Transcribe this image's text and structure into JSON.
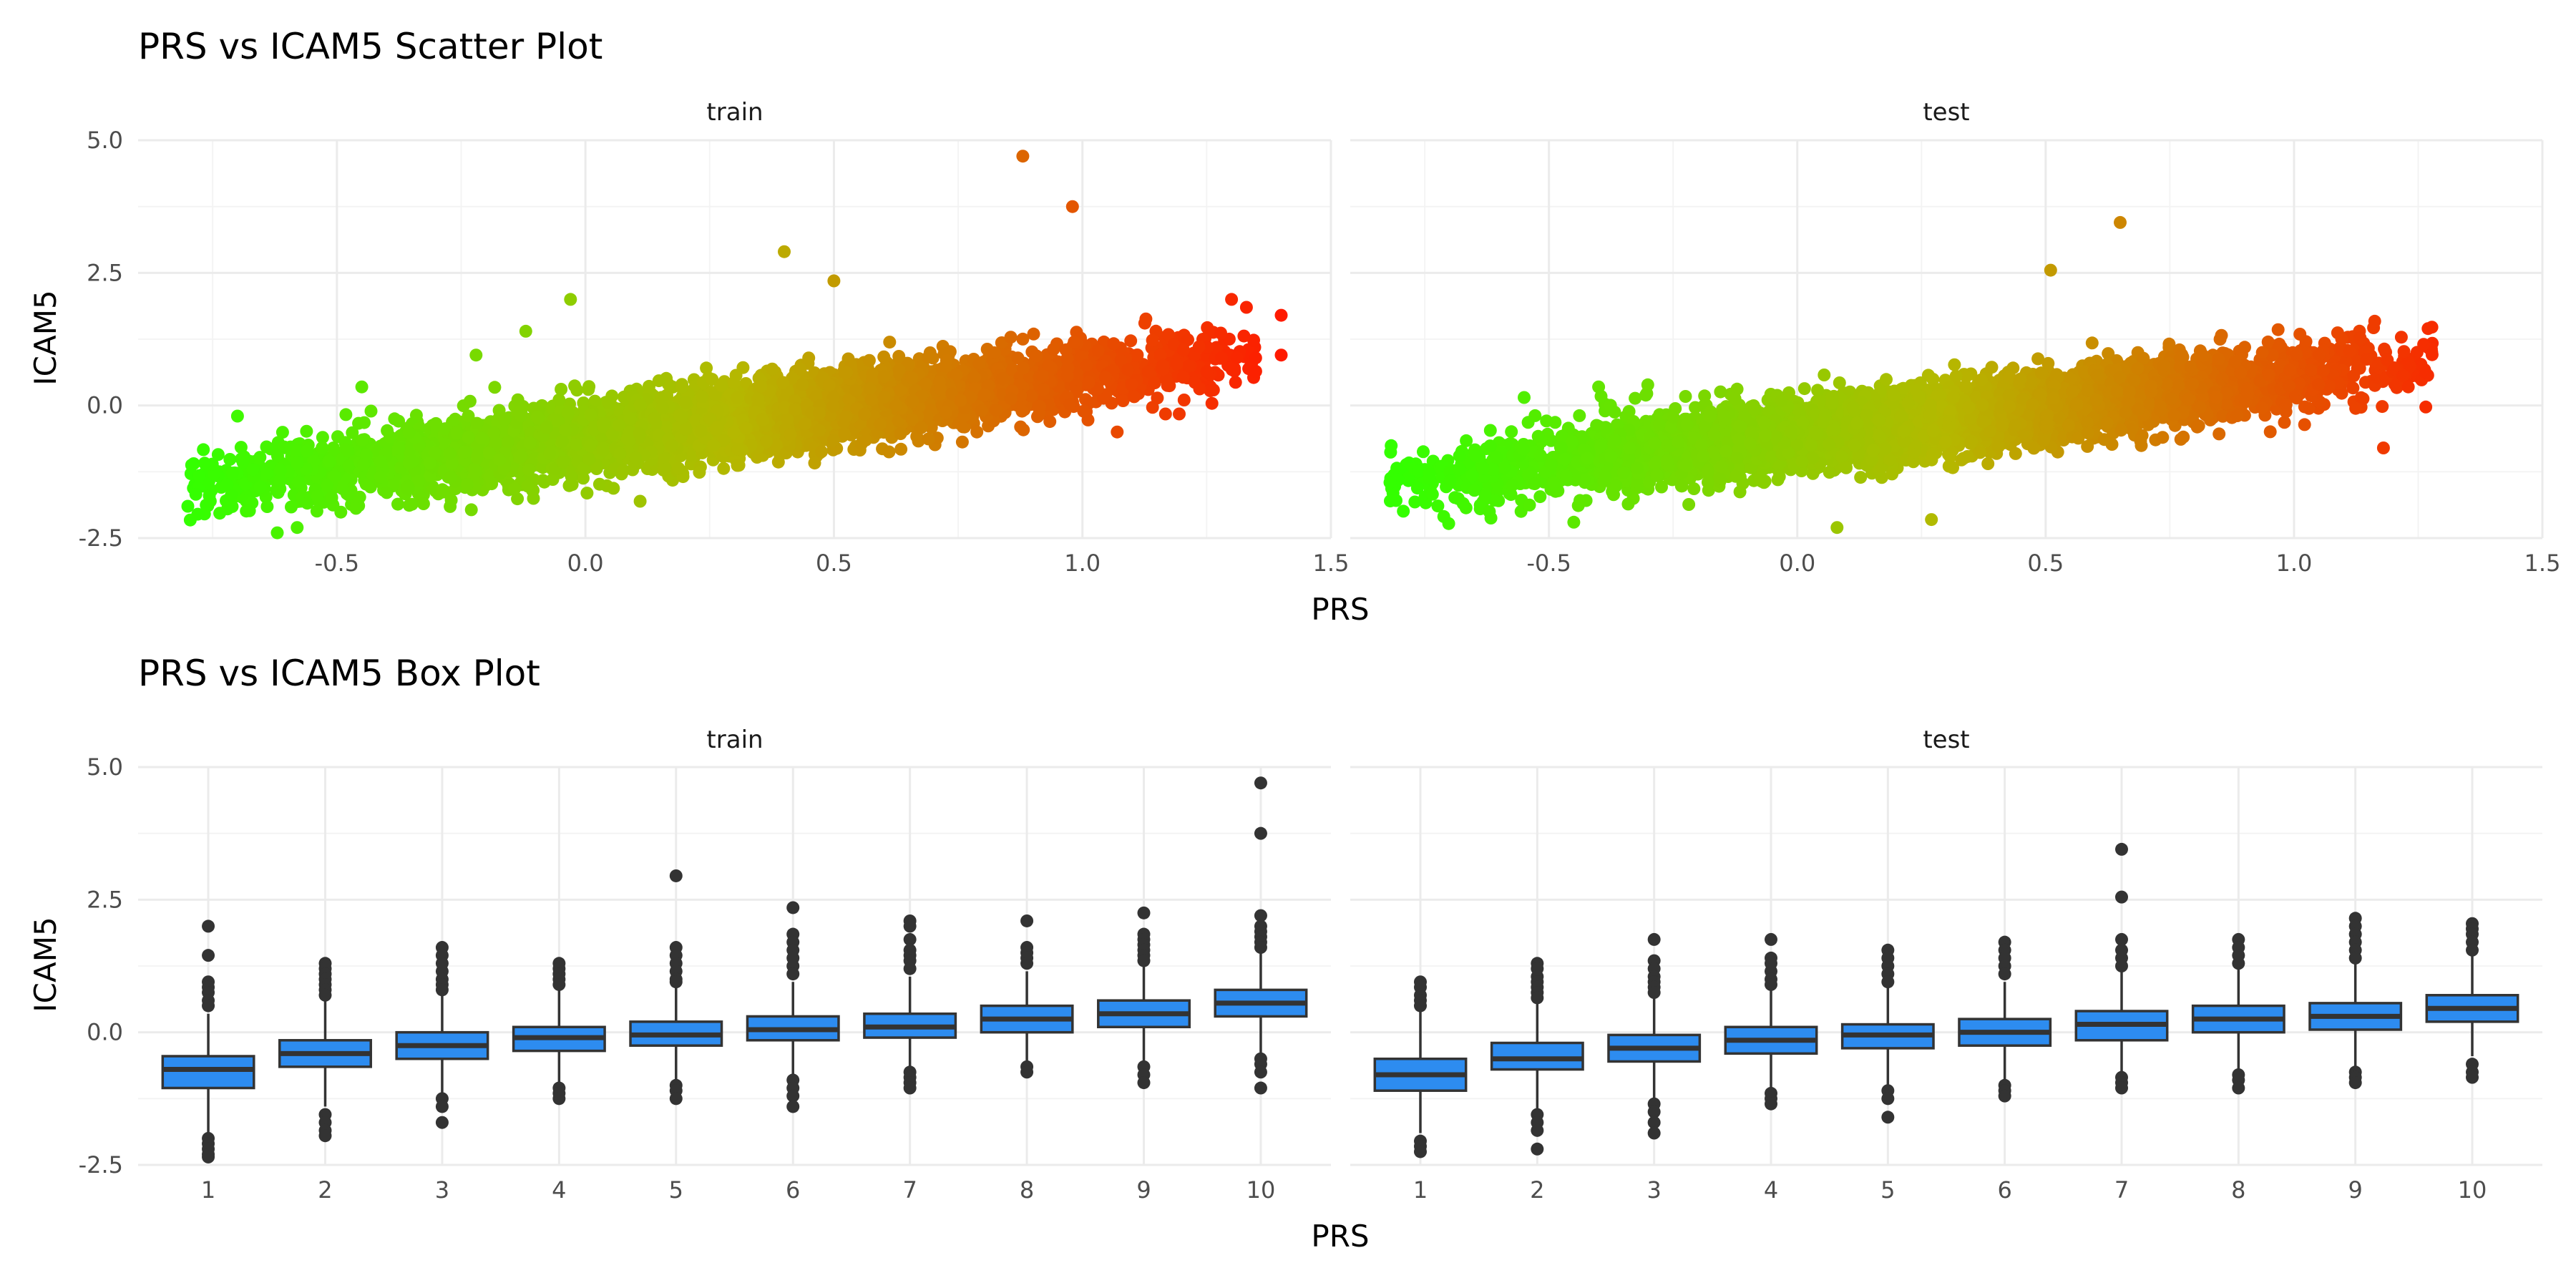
{
  "colors": {
    "low": "#33ff00",
    "mid": "#b5b800",
    "high": "#ff1a00",
    "box_fill": "#2d8cf0",
    "box_stroke": "#333333",
    "outlier": "#333333",
    "grid_major": "#ebebeb",
    "grid_minor": "#f3f3f3"
  },
  "chart_data": [
    {
      "type": "scatter",
      "title": "PRS vs ICAM5 Scatter Plot",
      "xlabel": "PRS",
      "ylabel": "ICAM5",
      "xlim": [
        -0.9,
        1.5
      ],
      "ylim": [
        -2.5,
        5.0
      ],
      "x_ticks": [
        -0.5,
        0.0,
        0.5,
        1.0,
        1.5
      ],
      "x_tick_labels": [
        "-0.5",
        "0.0",
        "0.5",
        "1.0",
        "1.5"
      ],
      "y_ticks": [
        -2.5,
        0.0,
        2.5,
        5.0
      ],
      "y_tick_labels": [
        "-2.5",
        "0.0",
        "2.5",
        "5.0"
      ],
      "grid": true,
      "color_by": "x",
      "panels": [
        {
          "label": "train",
          "trend": {
            "slope": 1.15,
            "intercept": -0.6,
            "x_range": [
              -0.8,
              1.35
            ]
          },
          "outliers": [
            [
              0.88,
              4.7
            ],
            [
              0.98,
              3.75
            ],
            [
              0.4,
              2.9
            ],
            [
              -0.03,
              2.0
            ],
            [
              0.5,
              2.35
            ],
            [
              1.4,
              1.7
            ],
            [
              1.4,
              0.95
            ],
            [
              1.3,
              2.0
            ],
            [
              1.33,
              1.85
            ],
            [
              -0.8,
              -1.9
            ],
            [
              -0.78,
              -2.05
            ],
            [
              -0.72,
              -1.95
            ],
            [
              -0.7,
              -0.2
            ],
            [
              -0.62,
              -2.4
            ],
            [
              -0.58,
              -2.3
            ],
            [
              -0.45,
              0.35
            ],
            [
              -0.22,
              0.95
            ],
            [
              -0.12,
              1.4
            ],
            [
              1.07,
              -0.5
            ],
            [
              1.28,
              0.9
            ]
          ]
        },
        {
          "label": "test",
          "trend": {
            "slope": 1.1,
            "intercept": -0.55,
            "x_range": [
              -0.82,
              1.28
            ]
          },
          "outliers": [
            [
              0.65,
              3.45
            ],
            [
              0.51,
              2.55
            ],
            [
              -0.82,
              -1.45
            ],
            [
              -0.68,
              -0.95
            ],
            [
              -0.68,
              -1.2
            ],
            [
              -0.65,
              -1.6
            ],
            [
              -0.55,
              0.15
            ],
            [
              -0.4,
              0.35
            ],
            [
              -0.62,
              -2.0
            ],
            [
              -0.45,
              -2.2
            ],
            [
              1.27,
              1.45
            ],
            [
              1.23,
              0.35
            ],
            [
              1.18,
              -0.8
            ],
            [
              0.27,
              -2.15
            ],
            [
              0.08,
              -2.3
            ]
          ]
        }
      ]
    },
    {
      "type": "box",
      "title": "PRS vs ICAM5 Box Plot",
      "xlabel": "PRS",
      "ylabel": "ICAM5",
      "categories": [
        "1",
        "2",
        "3",
        "4",
        "5",
        "6",
        "7",
        "8",
        "9",
        "10"
      ],
      "ylim": [
        -2.5,
        5.0
      ],
      "y_ticks": [
        -2.5,
        0.0,
        2.5,
        5.0
      ],
      "y_tick_labels": [
        "-2.5",
        "0.0",
        "2.5",
        "5.0"
      ],
      "grid": true,
      "panels": [
        {
          "label": "train",
          "boxes": [
            {
              "q1": -1.05,
              "median": -0.7,
              "q3": -0.45,
              "low": -1.9,
              "high": 0.35,
              "outliers": [
                2.0,
                1.45,
                0.95,
                0.85,
                0.75,
                0.6,
                0.5,
                -2.0,
                -2.1,
                -2.2,
                -2.3,
                -2.35
              ]
            },
            {
              "q1": -0.65,
              "median": -0.4,
              "q3": -0.15,
              "low": -1.4,
              "high": 0.6,
              "outliers": [
                1.3,
                1.2,
                1.1,
                1.0,
                0.9,
                0.8,
                0.7,
                -1.55,
                -1.7,
                -1.85,
                -1.95
              ]
            },
            {
              "q1": -0.5,
              "median": -0.25,
              "q3": 0.0,
              "low": -1.15,
              "high": 0.75,
              "outliers": [
                1.6,
                1.45,
                1.3,
                1.15,
                1.0,
                0.9,
                0.8,
                -1.25,
                -1.4,
                -1.7
              ]
            },
            {
              "q1": -0.35,
              "median": -0.1,
              "q3": 0.1,
              "low": -1.0,
              "high": 0.8,
              "outliers": [
                1.3,
                1.2,
                1.1,
                1.0,
                0.9,
                -1.05,
                -1.15,
                -1.25
              ]
            },
            {
              "q1": -0.25,
              "median": -0.05,
              "q3": 0.2,
              "low": -0.9,
              "high": 0.85,
              "outliers": [
                2.95,
                1.6,
                1.45,
                1.3,
                1.15,
                1.0,
                0.95,
                -1.0,
                -1.1,
                -1.25
              ]
            },
            {
              "q1": -0.15,
              "median": 0.05,
              "q3": 0.3,
              "low": -0.8,
              "high": 0.95,
              "outliers": [
                2.35,
                1.85,
                1.7,
                1.55,
                1.4,
                1.25,
                1.1,
                -0.9,
                -1.05,
                -1.2,
                -1.4
              ]
            },
            {
              "q1": -0.1,
              "median": 0.1,
              "q3": 0.35,
              "low": -0.7,
              "high": 1.05,
              "outliers": [
                2.1,
                2.0,
                1.75,
                1.55,
                1.45,
                1.35,
                1.2,
                -0.75,
                -0.85,
                -0.95,
                -1.05
              ]
            },
            {
              "q1": 0.0,
              "median": 0.25,
              "q3": 0.5,
              "low": -0.6,
              "high": 1.15,
              "outliers": [
                2.1,
                1.6,
                1.5,
                1.4,
                1.3,
                -0.65,
                -0.75
              ]
            },
            {
              "q1": 0.1,
              "median": 0.35,
              "q3": 0.6,
              "low": -0.55,
              "high": 1.25,
              "outliers": [
                2.25,
                1.85,
                1.75,
                1.65,
                1.55,
                1.45,
                1.35,
                -0.65,
                -0.8,
                -0.95
              ]
            },
            {
              "q1": 0.3,
              "median": 0.55,
              "q3": 0.8,
              "low": -0.4,
              "high": 1.5,
              "outliers": [
                4.7,
                3.75,
                2.2,
                2.0,
                1.9,
                1.8,
                1.7,
                1.6,
                -0.5,
                -0.6,
                -0.75,
                -1.05
              ]
            }
          ]
        },
        {
          "label": "test",
          "boxes": [
            {
              "q1": -1.1,
              "median": -0.8,
              "q3": -0.5,
              "low": -1.9,
              "high": 0.4,
              "outliers": [
                0.95,
                0.85,
                0.7,
                0.6,
                0.5,
                -2.05,
                -2.15,
                -2.25
              ]
            },
            {
              "q1": -0.7,
              "median": -0.5,
              "q3": -0.2,
              "low": -1.45,
              "high": 0.55,
              "outliers": [
                1.3,
                1.2,
                1.05,
                0.95,
                0.85,
                0.75,
                0.65,
                -1.55,
                -1.7,
                -1.85,
                -2.2
              ]
            },
            {
              "q1": -0.55,
              "median": -0.3,
              "q3": -0.05,
              "low": -1.25,
              "high": 0.65,
              "outliers": [
                1.75,
                1.35,
                1.2,
                1.05,
                0.95,
                0.85,
                0.75,
                -1.35,
                -1.5,
                -1.7,
                -1.9
              ]
            },
            {
              "q1": -0.4,
              "median": -0.15,
              "q3": 0.1,
              "low": -1.1,
              "high": 0.85,
              "outliers": [
                1.75,
                1.4,
                1.3,
                1.15,
                1.0,
                0.9,
                -1.15,
                -1.25,
                -1.35
              ]
            },
            {
              "q1": -0.3,
              "median": -0.05,
              "q3": 0.15,
              "low": -1.0,
              "high": 0.85,
              "outliers": [
                1.55,
                1.4,
                1.25,
                1.1,
                0.95,
                -1.1,
                -1.25,
                -1.6
              ]
            },
            {
              "q1": -0.25,
              "median": 0.0,
              "q3": 0.25,
              "low": -0.95,
              "high": 0.95,
              "outliers": [
                1.7,
                1.55,
                1.4,
                1.25,
                1.1,
                -1.0,
                -1.1,
                -1.2
              ]
            },
            {
              "q1": -0.15,
              "median": 0.15,
              "q3": 0.4,
              "low": -0.8,
              "high": 1.15,
              "outliers": [
                3.45,
                2.55,
                1.75,
                1.55,
                1.4,
                1.25,
                -0.85,
                -0.95,
                -1.05
              ]
            },
            {
              "q1": 0.0,
              "median": 0.25,
              "q3": 0.5,
              "low": -0.7,
              "high": 1.2,
              "outliers": [
                1.75,
                1.6,
                1.45,
                1.3,
                -0.8,
                -0.9,
                -1.05
              ]
            },
            {
              "q1": 0.05,
              "median": 0.3,
              "q3": 0.55,
              "low": -0.65,
              "high": 1.3,
              "outliers": [
                2.15,
                2.0,
                1.85,
                1.7,
                1.55,
                1.4,
                -0.75,
                -0.85,
                -0.95
              ]
            },
            {
              "q1": 0.2,
              "median": 0.45,
              "q3": 0.7,
              "low": -0.45,
              "high": 1.45,
              "outliers": [
                2.05,
                1.95,
                1.85,
                1.7,
                1.55,
                -0.6,
                -0.75,
                -0.85
              ]
            }
          ]
        }
      ]
    }
  ]
}
